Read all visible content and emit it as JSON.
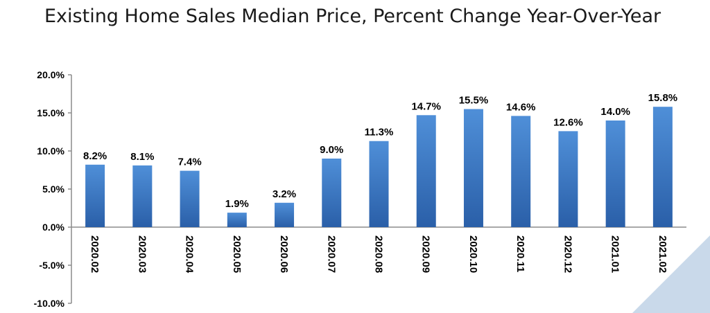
{
  "chart_data": {
    "type": "bar",
    "title": "Existing Home Sales Median Price, Percent Change Year-Over-Year",
    "xlabel": "",
    "ylabel": "",
    "categories": [
      "2020.02",
      "2020.03",
      "2020.04",
      "2020.05",
      "2020.06",
      "2020.07",
      "2020.08",
      "2020.09",
      "2020.10",
      "2020.11",
      "2020.12",
      "2021.01",
      "2021.02"
    ],
    "values": [
      8.2,
      8.1,
      7.4,
      1.9,
      3.2,
      9.0,
      11.3,
      14.7,
      15.5,
      14.6,
      12.6,
      14.0,
      15.8
    ],
    "data_labels": [
      "8.2%",
      "8.1%",
      "7.4%",
      "1.9%",
      "3.2%",
      "9.0%",
      "11.3%",
      "14.7%",
      "15.5%",
      "14.6%",
      "12.6%",
      "14.0%",
      "15.8%"
    ],
    "yticks": [
      20,
      15,
      10,
      5,
      0,
      -5,
      -10
    ],
    "ytick_labels": [
      "20.0%",
      "15.0%",
      "10.0%",
      "5.0%",
      "0.0%",
      "-5.0%",
      "-10.0%"
    ],
    "ylim": [
      -10,
      20
    ],
    "grid": false,
    "legend": "none"
  },
  "colors": {
    "bar_top": "#4f8fd8",
    "bar_bottom": "#2a5fa8",
    "axis": "#8c8c8c",
    "corner_decoration": "#c9d9ea"
  }
}
